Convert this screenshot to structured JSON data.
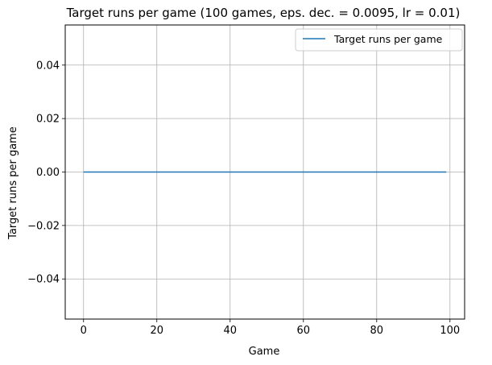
{
  "chart_data": {
    "type": "line",
    "title": "Target runs per game (100 games, eps. dec. = 0.0095, lr = 0.01)",
    "xlabel": "Game",
    "ylabel": "Target runs per game",
    "xlim": [
      -5,
      104
    ],
    "ylim": [
      -0.055,
      0.055
    ],
    "x_ticks": [
      0,
      20,
      40,
      60,
      80,
      100
    ],
    "y_ticks": [
      -0.04,
      -0.02,
      0.0,
      0.02,
      0.04
    ],
    "x_tick_labels": [
      "0",
      "20",
      "40",
      "60",
      "80",
      "100"
    ],
    "y_tick_labels": [
      "−0.04",
      "−0.02",
      "0.00",
      "0.02",
      "0.04"
    ],
    "grid": true,
    "legend_position": "top-right",
    "series": [
      {
        "name": "Target runs per game",
        "color": "#1f77b4",
        "x_start": 0,
        "x_end": 99,
        "values": [
          0,
          0,
          0,
          0,
          0,
          0,
          0,
          0,
          0,
          0,
          0,
          0,
          0,
          0,
          0,
          0,
          0,
          0,
          0,
          0,
          0,
          0,
          0,
          0,
          0,
          0,
          0,
          0,
          0,
          0,
          0,
          0,
          0,
          0,
          0,
          0,
          0,
          0,
          0,
          0,
          0,
          0,
          0,
          0,
          0,
          0,
          0,
          0,
          0,
          0,
          0,
          0,
          0,
          0,
          0,
          0,
          0,
          0,
          0,
          0,
          0,
          0,
          0,
          0,
          0,
          0,
          0,
          0,
          0,
          0,
          0,
          0,
          0,
          0,
          0,
          0,
          0,
          0,
          0,
          0,
          0,
          0,
          0,
          0,
          0,
          0,
          0,
          0,
          0,
          0,
          0,
          0,
          0,
          0,
          0,
          0,
          0,
          0,
          0,
          0
        ]
      }
    ]
  }
}
